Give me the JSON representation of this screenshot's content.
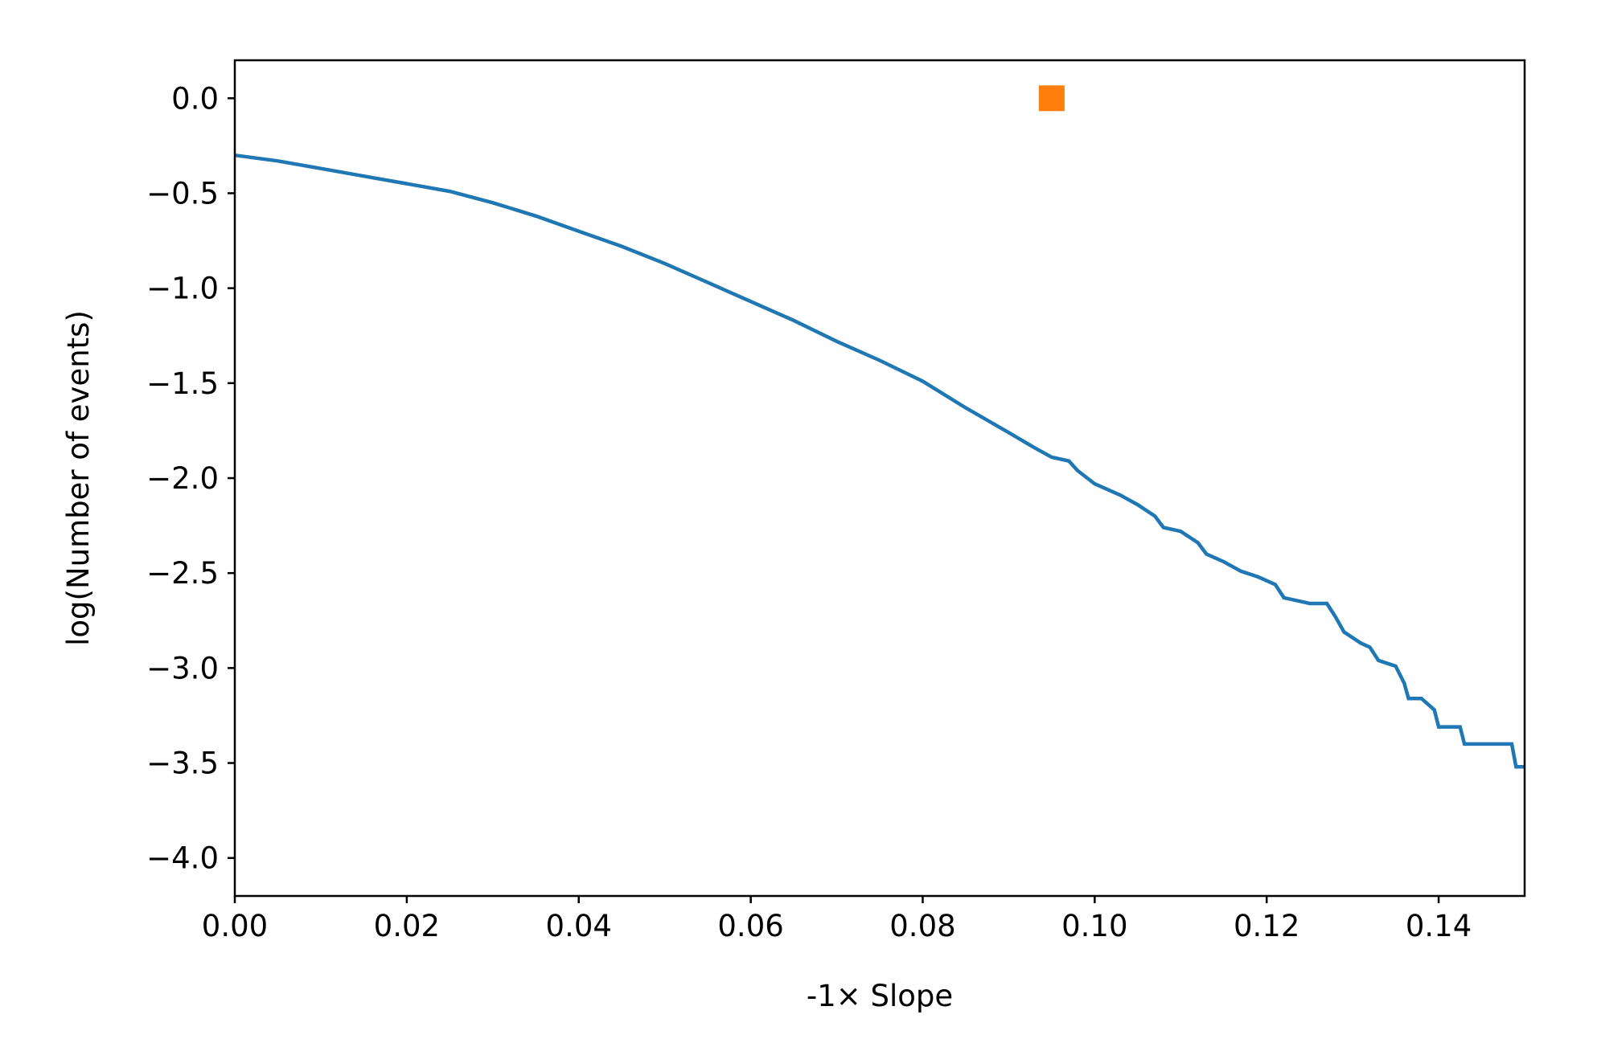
{
  "chart_data": {
    "type": "line",
    "title": "",
    "xlabel": "-1× Slope",
    "ylabel": "log(Number of events)",
    "xlim": [
      0.0,
      0.15
    ],
    "ylim": [
      -4.2,
      0.2
    ],
    "x_ticks": [
      "0.00",
      "0.02",
      "0.04",
      "0.06",
      "0.08",
      "0.10",
      "0.12",
      "0.14"
    ],
    "y_ticks": [
      "0.0",
      "−0.5",
      "−1.0",
      "−1.5",
      "−2.0",
      "−2.5",
      "−3.0",
      "−3.5",
      "−4.0"
    ],
    "grid": false,
    "legend": "none",
    "series": [
      {
        "color": "#1f77b4",
        "points": [
          [
            0.0,
            -0.3
          ],
          [
            0.005,
            -0.33
          ],
          [
            0.01,
            -0.37
          ],
          [
            0.015,
            -0.41
          ],
          [
            0.02,
            -0.45
          ],
          [
            0.025,
            -0.49
          ],
          [
            0.03,
            -0.55
          ],
          [
            0.035,
            -0.62
          ],
          [
            0.04,
            -0.7
          ],
          [
            0.045,
            -0.78
          ],
          [
            0.05,
            -0.87
          ],
          [
            0.055,
            -0.97
          ],
          [
            0.06,
            -1.07
          ],
          [
            0.065,
            -1.17
          ],
          [
            0.07,
            -1.28
          ],
          [
            0.075,
            -1.38
          ],
          [
            0.08,
            -1.49
          ],
          [
            0.085,
            -1.63
          ],
          [
            0.09,
            -1.76
          ],
          [
            0.093,
            -1.84
          ],
          [
            0.095,
            -1.89
          ],
          [
            0.097,
            -1.91
          ],
          [
            0.098,
            -1.96
          ],
          [
            0.1,
            -2.03
          ],
          [
            0.103,
            -2.09
          ],
          [
            0.105,
            -2.14
          ],
          [
            0.107,
            -2.2
          ],
          [
            0.108,
            -2.26
          ],
          [
            0.11,
            -2.28
          ],
          [
            0.112,
            -2.34
          ],
          [
            0.113,
            -2.4
          ],
          [
            0.115,
            -2.44
          ],
          [
            0.117,
            -2.49
          ],
          [
            0.119,
            -2.52
          ],
          [
            0.121,
            -2.56
          ],
          [
            0.122,
            -2.63
          ],
          [
            0.124,
            -2.65
          ],
          [
            0.125,
            -2.66
          ],
          [
            0.127,
            -2.66
          ],
          [
            0.128,
            -2.73
          ],
          [
            0.129,
            -2.81
          ],
          [
            0.131,
            -2.87
          ],
          [
            0.132,
            -2.89
          ],
          [
            0.133,
            -2.96
          ],
          [
            0.135,
            -2.99
          ],
          [
            0.136,
            -3.08
          ],
          [
            0.1365,
            -3.16
          ],
          [
            0.138,
            -3.16
          ],
          [
            0.1395,
            -3.22
          ],
          [
            0.14,
            -3.31
          ],
          [
            0.1425,
            -3.31
          ],
          [
            0.143,
            -3.4
          ],
          [
            0.1485,
            -3.4
          ],
          [
            0.149,
            -3.52
          ],
          [
            0.15,
            -3.52
          ]
        ]
      },
      {
        "type": "scatter",
        "marker": "square",
        "color": "#ff7f0e",
        "points": [
          [
            0.095,
            0.0
          ]
        ]
      }
    ]
  }
}
